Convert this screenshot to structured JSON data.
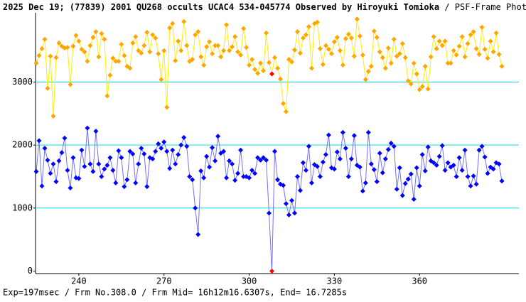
{
  "chart_data": {
    "type": "line",
    "title": "2025 Dec 19; (77839) 2001 QU268 occults UCAC4 534-045774 Observed by Hiroyuki Tomioka",
    "subtitle": "/ PSF-Frame Photometry /",
    "footer": "Exp=197msec / Frm No.308.0 / Frm Mid= 16h12m16.6307s, End= 16.7285s",
    "x": [
      225,
      226,
      227,
      228,
      229,
      230,
      231,
      232,
      233,
      234,
      235,
      236,
      237,
      238,
      239,
      240,
      241,
      242,
      243,
      244,
      245,
      246,
      247,
      248,
      249,
      250,
      251,
      252,
      253,
      254,
      255,
      256,
      257,
      258,
      259,
      260,
      261,
      262,
      263,
      264,
      265,
      266,
      267,
      268,
      269,
      270,
      271,
      272,
      273,
      274,
      275,
      276,
      277,
      278,
      279,
      280,
      281,
      282,
      283,
      284,
      285,
      286,
      287,
      288,
      289,
      290,
      291,
      292,
      293,
      294,
      295,
      296,
      297,
      298,
      299,
      300,
      301,
      302,
      303,
      304,
      305,
      306,
      307,
      308,
      309,
      310,
      311,
      312,
      313,
      314,
      315,
      316,
      317,
      318,
      319,
      320,
      321,
      322,
      323,
      324,
      325,
      326,
      327,
      328,
      329,
      330,
      331,
      332,
      333,
      334,
      335,
      336,
      337,
      338,
      339,
      340,
      341,
      342,
      343,
      344,
      345,
      346,
      347,
      348,
      349,
      350,
      351,
      352,
      353,
      354,
      355,
      356,
      357,
      358,
      359,
      360,
      361,
      362,
      363,
      364,
      365,
      366,
      367,
      368,
      369,
      370,
      371,
      372,
      373,
      374,
      375,
      376,
      377,
      378,
      379,
      380,
      381,
      382,
      383,
      384,
      385,
      386,
      387,
      388,
      389
    ],
    "series": [
      {
        "color": "#ffee00",
        "marker_color": "#ffa500",
        "values": [
          3300,
          3420,
          3530,
          3680,
          2900,
          3410,
          2460,
          3390,
          3620,
          3570,
          3540,
          3550,
          2960,
          3570,
          3740,
          3650,
          3520,
          3480,
          3330,
          3580,
          3710,
          3800,
          3400,
          3770,
          3680,
          2780,
          3110,
          3380,
          3330,
          3330,
          3600,
          3420,
          3250,
          3220,
          3620,
          3720,
          3500,
          3460,
          3580,
          3790,
          3480,
          3750,
          3700,
          3450,
          3040,
          3500,
          2600,
          3860,
          3930,
          3340,
          3650,
          3500,
          3960,
          3580,
          3330,
          3360,
          3750,
          3800,
          3400,
          3270,
          3560,
          3640,
          3450,
          3580,
          3580,
          3400,
          3500,
          3910,
          3500,
          3560,
          3720,
          3480,
          3430,
          3850,
          3550,
          3270,
          3360,
          3200,
          3140,
          3300,
          3180,
          3780,
          3310,
          3130,
          3390,
          3220,
          3050,
          2660,
          2530,
          3360,
          3320,
          3510,
          3800,
          3460,
          3700,
          3750,
          3880,
          3220,
          3930,
          3950,
          3530,
          3280,
          3580,
          3520,
          3450,
          3640,
          3710,
          3500,
          3270,
          3690,
          3760,
          3700,
          3410,
          4000,
          3730,
          3430,
          3040,
          3170,
          3250,
          3810,
          3710,
          3480,
          3390,
          3220,
          3540,
          3300,
          3680,
          3410,
          3450,
          3610,
          3390,
          3020,
          2970,
          3300,
          3130,
          2880,
          2930,
          3250,
          2890,
          3400,
          3720,
          3530,
          3650,
          3580,
          3650,
          3300,
          3300,
          3500,
          3430,
          3570,
          3720,
          3400,
          3610,
          3750,
          3800,
          3530,
          3440,
          3870,
          3520,
          3380,
          3650,
          3480,
          3780,
          3440,
          3250
        ]
      },
      {
        "color": "#7070ff",
        "marker_color": "#0000ff",
        "values": [
          1580,
          2070,
          1350,
          1950,
          1760,
          1550,
          1700,
          1420,
          1750,
          1880,
          2110,
          1600,
          1320,
          1800,
          1480,
          1470,
          1920,
          1660,
          2270,
          1700,
          1580,
          2220,
          1700,
          1500,
          1620,
          1680,
          1800,
          1600,
          1400,
          1910,
          1800,
          1340,
          1450,
          1900,
          1860,
          1400,
          1700,
          1950,
          1860,
          1340,
          1800,
          1780,
          1900,
          2020,
          1950,
          2050,
          1900,
          1630,
          1920,
          1700,
          1850,
          2000,
          2120,
          1980,
          1500,
          1450,
          1000,
          580,
          1590,
          1480,
          1820,
          1650,
          1960,
          1750,
          2140,
          1870,
          1900,
          1480,
          1750,
          1700,
          1440,
          1550,
          1920,
          1500,
          1500,
          1480,
          1600,
          1550,
          1800,
          1760,
          1800,
          1760,
          920,
          0,
          1900,
          1450,
          1380,
          1360,
          1070,
          890,
          1120,
          920,
          1500,
          1280,
          1720,
          1600,
          1980,
          1400,
          1690,
          1660,
          1500,
          1730,
          1850,
          2160,
          1640,
          1620,
          1890,
          1780,
          2200,
          1950,
          1500,
          1780,
          2150,
          1680,
          1650,
          1270,
          1400,
          2200,
          1700,
          1610,
          1420,
          1870,
          1560,
          1780,
          1930,
          2030,
          1980,
          1300,
          1640,
          1200,
          1390,
          1460,
          1540,
          1140,
          1640,
          1350,
          1850,
          1590,
          1970,
          1750,
          1720,
          1680,
          1820,
          1990,
          1600,
          1720,
          1650,
          1680,
          1500,
          1800,
          1600,
          1920,
          1500,
          1350,
          1510,
          1380,
          1920,
          1980,
          1810,
          1550,
          1650,
          1620,
          1720,
          1700,
          1430
        ]
      }
    ],
    "highlight_x": 308,
    "highlight_color": "#ff0000",
    "xlim": [
      224.75,
      395
    ],
    "ylim": [
      -40,
      4100
    ],
    "xticks": [
      240,
      270,
      300,
      330,
      360
    ],
    "yticks": [
      0,
      1000,
      2000,
      3000
    ],
    "grid": true,
    "grid_color": "#00e0e0"
  }
}
